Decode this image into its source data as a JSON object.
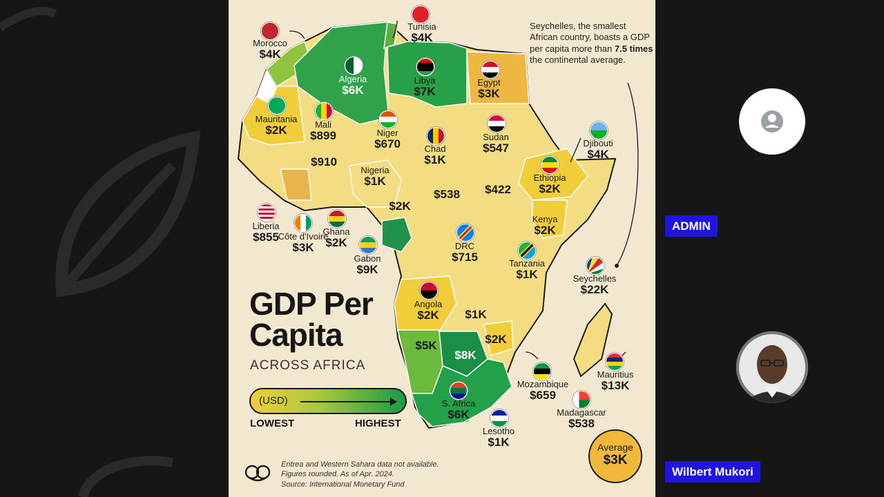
{
  "infographic": {
    "title_line1": "GDP Per",
    "title_line2": "Capita",
    "subtitle": "ACROSS AFRICA",
    "legend": {
      "unit": "(USD)",
      "lowest": "LOWEST",
      "highest": "HIGHEST"
    },
    "note": {
      "part1": "Seychelles, the smallest African country, boasts a GDP per capita more than ",
      "highlight": "7.5 times",
      "part2": " the continental average."
    },
    "average": {
      "label": "Average",
      "value": "$3K"
    },
    "footnote": [
      "Eritrea and Western Sahara data not available.",
      "Figures rounded. As of Apr. 2024.",
      "Source: International Monetary Fund"
    ],
    "countries": [
      {
        "name": "Tunisia",
        "value": "$4K"
      },
      {
        "name": "Morocco",
        "value": "$4K"
      },
      {
        "name": "Algeria",
        "value": "$6K"
      },
      {
        "name": "Libya",
        "value": "$7K"
      },
      {
        "name": "Egypt",
        "value": "$3K"
      },
      {
        "name": "Mauritania",
        "value": "$2K"
      },
      {
        "name": "Mali",
        "value": "$899"
      },
      {
        "name": "Niger",
        "value": "$670"
      },
      {
        "name": "Chad",
        "value": "$1K"
      },
      {
        "name": "Sudan",
        "value": "$547"
      },
      {
        "name": "Djibouti",
        "value": "$4K"
      },
      {
        "name": "Ethiopia",
        "value": "$2K"
      },
      {
        "name": "Nigeria",
        "value": "$1K"
      },
      {
        "name": "Liberia",
        "value": "$855"
      },
      {
        "name": "Côte d'Ivoire",
        "value": "$3K"
      },
      {
        "name": "Ghana",
        "value": "$2K"
      },
      {
        "name": "Gabon",
        "value": "$9K"
      },
      {
        "name": "DRC",
        "value": "$715"
      },
      {
        "name": "Kenya",
        "value": "$2K"
      },
      {
        "name": "Tanzania",
        "value": "$1K"
      },
      {
        "name": "Seychelles",
        "value": "$22K"
      },
      {
        "name": "Angola",
        "value": "$2K"
      },
      {
        "name": "Mozambique",
        "value": "$659"
      },
      {
        "name": "Madagascar",
        "value": "$538"
      },
      {
        "name": "Mauritius",
        "value": "$13K"
      },
      {
        "name": "S. Africa",
        "value": "$6K"
      },
      {
        "name": "Lesotho",
        "value": "$1K"
      }
    ],
    "unlabeled_values": [
      "$910",
      "$2K",
      "$538",
      "$422",
      "$1K",
      "$2K",
      "$5K",
      "$8K"
    ],
    "colors": {
      "lowest": "#f2cd3a",
      "highest": "#1a9a47",
      "background": "#f2e8d0"
    }
  },
  "participants": [
    {
      "name": "ADMIN",
      "avatar": "person-placeholder-icon"
    },
    {
      "name": "Wilbert Mukori",
      "avatar": "photo"
    }
  ]
}
